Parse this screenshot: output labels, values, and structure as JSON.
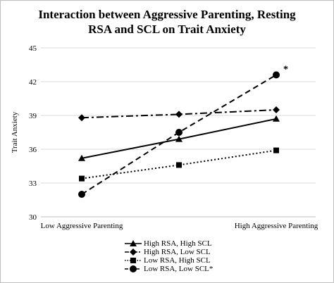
{
  "chart_data": {
    "type": "line",
    "title_lines": [
      "Interaction between Aggressive Parenting, Resting",
      "RSA and SCL on Trait Anxiety"
    ],
    "ylabel": "Trait Anxiety",
    "xlabel": "",
    "ylim": [
      30,
      45
    ],
    "yticks": [
      30,
      33,
      36,
      39,
      42,
      45
    ],
    "x_tick_labels": [
      "Low Aggressive Parenting",
      "",
      "High Aggressive Parenting"
    ],
    "x": [
      0,
      0.5,
      1
    ],
    "grid": true,
    "legend_position": "bottom",
    "series": [
      {
        "name": "High RSA, High SCL",
        "values": [
          35.2,
          36.9,
          38.7
        ],
        "marker": "triangle",
        "dash": "solid"
      },
      {
        "name": "High RSA, Low SCL",
        "values": [
          38.8,
          39.1,
          39.5
        ],
        "marker": "diamond",
        "dash": "dashdot"
      },
      {
        "name": "Low RSA, High SCL",
        "values": [
          33.4,
          34.6,
          35.9
        ],
        "marker": "square",
        "dash": "dotted"
      },
      {
        "name": "Low RSA, Low SCL*",
        "values": [
          32.0,
          37.5,
          42.6
        ],
        "marker": "circle",
        "dash": "dashed"
      }
    ],
    "annotations": [
      {
        "text": "*",
        "series": 3,
        "x": 1
      }
    ]
  }
}
